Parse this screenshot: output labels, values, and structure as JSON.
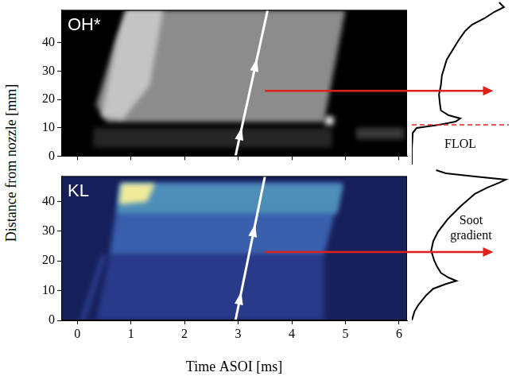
{
  "shared_ylabel": "Distance from nozzle [mm]",
  "chart_data": [
    {
      "type": "image_panel",
      "title": "OH*",
      "background": "#000000",
      "xlim": [
        -0.3,
        6.15
      ],
      "xticks": [
        0,
        1,
        2,
        3,
        4,
        5,
        6
      ],
      "ylim": [
        0,
        51.5
      ],
      "yticks": [
        0,
        10,
        20,
        30,
        40
      ],
      "tick_labels": "y",
      "grid": false,
      "regions": [
        {
          "color": "#262626",
          "t": [
            0.3,
            4.75,
            4.75,
            0.3
          ],
          "d": [
            3,
            3,
            10,
            10
          ]
        },
        {
          "color": "#8c8c8c",
          "t": [
            0.55,
            0.35,
            0.7,
            0.95,
            5.0,
            4.6
          ],
          "d": [
            12,
            18,
            40,
            51.5,
            51.5,
            12
          ]
        },
        {
          "color": "#c4c4c4",
          "t": [
            0.45,
            0.75,
            0.9,
            1.6,
            1.35,
            0.85
          ],
          "d": [
            14,
            42,
            51.5,
            51.5,
            25,
            13
          ]
        },
        {
          "color": "#3a3a3a",
          "t": [
            5.2,
            6.1,
            6.1,
            5.2
          ],
          "d": [
            6,
            6,
            10,
            10
          ]
        },
        {
          "color": "#e6e6e6",
          "t": [
            4.62,
            4.78,
            4.78,
            4.62
          ],
          "d": [
            11,
            11,
            14,
            14
          ]
        }
      ],
      "marker_line": {
        "color": "#ffffff",
        "t": [
          2.95,
          3.55
        ],
        "d": [
          0,
          51.5
        ]
      },
      "arrow": {
        "color": "#e0201b",
        "t": 3.5,
        "d": 23
      }
    },
    {
      "type": "image_panel",
      "title": "KL",
      "background": "#17205a",
      "xlabel": "Time ASOI [ms]",
      "xlim": [
        -0.3,
        6.15
      ],
      "xticks": [
        0,
        1,
        2,
        3,
        4,
        5,
        6
      ],
      "ylim": [
        0,
        48.5
      ],
      "yticks": [
        0,
        10,
        20,
        30,
        40
      ],
      "tick_labels": true,
      "grid": false,
      "regions": [
        {
          "color": "#2e3f92",
          "t": [
            0.05,
            0.45,
            0.55,
            0.15
          ],
          "d": [
            0,
            22,
            22,
            0
          ]
        },
        {
          "color": "#2a3a8a",
          "t": [
            0.35,
            0.6,
            4.6,
            4.6
          ],
          "d": [
            0,
            22,
            22,
            0
          ]
        },
        {
          "color": "#3a5fae",
          "t": [
            0.6,
            0.8,
            4.95,
            4.6
          ],
          "d": [
            22,
            46,
            46,
            22
          ]
        },
        {
          "color": "#4d8fb8",
          "t": [
            0.75,
            0.8,
            4.95,
            4.85
          ],
          "d": [
            36,
            46,
            46,
            36
          ]
        },
        {
          "color": "#f0ea9a",
          "t": [
            0.78,
            0.82,
            1.45,
            1.3
          ],
          "d": [
            39,
            46,
            46,
            40
          ]
        }
      ],
      "marker_line": {
        "color": "#ffffff",
        "t": [
          2.95,
          3.5
        ],
        "d": [
          0,
          48.5
        ]
      },
      "arrow": {
        "color": "#e0201b",
        "t": 3.5,
        "d": 23
      }
    },
    {
      "type": "line",
      "xlim": [
        0,
        1
      ],
      "ylim": [
        0,
        51.5
      ],
      "tick_labels": false,
      "grid": false,
      "series": [
        {
          "color": "#000000",
          "y": [
            0,
            5,
            10,
            11.5,
            12.5,
            13.5,
            14.5,
            15.5,
            17,
            19,
            22,
            25,
            28,
            30,
            33,
            36,
            39,
            42,
            44,
            46,
            48,
            49.5,
            51
          ],
          "values": [
            0,
            0,
            0.01,
            0.05,
            0.28,
            0.45,
            0.5,
            0.38,
            0.3,
            0.29,
            0.28,
            0.3,
            0.31,
            0.33,
            0.36,
            0.42,
            0.48,
            0.55,
            0.62,
            0.75,
            0.85,
            0.95,
            0.9
          ]
        }
      ],
      "annotation": {
        "text": "FLOL",
        "d": 12.5,
        "color": "#e0201b",
        "line_style": "dashed"
      }
    },
    {
      "type": "line",
      "xlim": [
        0,
        1
      ],
      "ylim": [
        0,
        48.5
      ],
      "tick_labels": false,
      "grid": false,
      "series": [
        {
          "color": "#000000",
          "y": [
            0,
            3,
            5,
            8,
            10,
            11.5,
            12.5,
            13.5,
            15,
            17,
            19,
            22,
            25,
            28,
            32,
            36,
            40,
            42,
            43.5,
            44.5,
            45.5,
            46.5,
            47.5
          ],
          "values": [
            0,
            0.03,
            0.07,
            0.15,
            0.22,
            0.35,
            0.46,
            0.38,
            0.3,
            0.26,
            0.23,
            0.2,
            0.22,
            0.27,
            0.37,
            0.5,
            0.65,
            0.78,
            0.9,
            0.97,
            0.65,
            0.35,
            0.25
          ]
        }
      ],
      "annotation": {
        "text": "Soot gradient"
      }
    }
  ]
}
